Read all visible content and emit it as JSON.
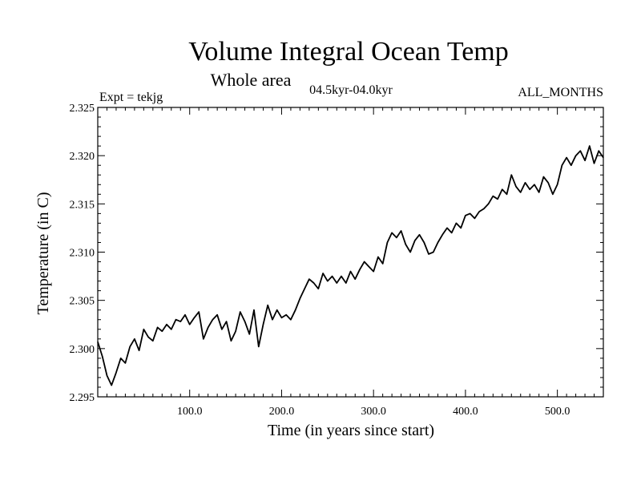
{
  "chart_data": {
    "type": "line",
    "title": "Volume Integral Ocean Temp",
    "subtitle": "Whole area",
    "period": "04.5kyr-04.0kyr",
    "expt": "Expt = tekjg",
    "months": "ALL_MONTHS",
    "xlabel": "Time (in years since start)",
    "ylabel": "Temperature (in C)",
    "xlim": [
      0,
      550
    ],
    "ylim": [
      2.295,
      2.325
    ],
    "x_ticks": [
      100.0,
      200.0,
      300.0,
      400.0,
      500.0
    ],
    "x_tick_labels": [
      "100.0",
      "200.0",
      "300.0",
      "400.0",
      "500.0"
    ],
    "y_ticks": [
      2.295,
      2.3,
      2.305,
      2.31,
      2.315,
      2.32,
      2.325
    ],
    "y_tick_labels": [
      "2.295",
      "2.300",
      "2.305",
      "2.310",
      "2.315",
      "2.320",
      "2.325"
    ],
    "series": [
      {
        "name": "Volume integral ocean temperature",
        "color": "#000000",
        "x": [
          0,
          5,
          10,
          15,
          20,
          25,
          30,
          35,
          40,
          45,
          50,
          55,
          60,
          65,
          70,
          75,
          80,
          85,
          90,
          95,
          100,
          105,
          110,
          115,
          120,
          125,
          130,
          135,
          140,
          145,
          150,
          155,
          160,
          165,
          170,
          175,
          180,
          185,
          190,
          195,
          200,
          205,
          210,
          215,
          220,
          225,
          230,
          235,
          240,
          245,
          250,
          255,
          260,
          265,
          270,
          275,
          280,
          285,
          290,
          295,
          300,
          305,
          310,
          315,
          320,
          325,
          330,
          335,
          340,
          345,
          350,
          355,
          360,
          365,
          370,
          375,
          380,
          385,
          390,
          395,
          400,
          405,
          410,
          415,
          420,
          425,
          430,
          435,
          440,
          445,
          450,
          455,
          460,
          465,
          470,
          475,
          480,
          485,
          490,
          495,
          500,
          505,
          510,
          515,
          520,
          525,
          530,
          535,
          540,
          545,
          550
        ],
        "y": [
          2.3007,
          2.2992,
          2.2972,
          2.2962,
          2.2975,
          2.299,
          2.2985,
          2.3002,
          2.301,
          2.2998,
          2.302,
          2.3012,
          2.3008,
          2.3022,
          2.3018,
          2.3025,
          2.302,
          2.303,
          2.3028,
          2.3035,
          2.3025,
          2.3032,
          2.3038,
          2.301,
          2.3022,
          2.303,
          2.3035,
          2.302,
          2.3028,
          2.3008,
          2.3018,
          2.3038,
          2.3028,
          2.3015,
          2.304,
          2.3002,
          2.3025,
          2.3045,
          2.303,
          2.304,
          2.3032,
          2.3035,
          2.303,
          2.304,
          2.3052,
          2.3062,
          2.3072,
          2.3068,
          2.3062,
          2.3078,
          2.307,
          2.3075,
          2.3068,
          2.3075,
          2.3068,
          2.308,
          2.3072,
          2.3082,
          2.309,
          2.3085,
          2.308,
          2.3095,
          2.3088,
          2.311,
          2.312,
          2.3115,
          2.3122,
          2.3108,
          2.31,
          2.3112,
          2.3118,
          2.311,
          2.3098,
          2.31,
          2.311,
          2.3118,
          2.3125,
          2.312,
          2.313,
          2.3125,
          2.3138,
          2.314,
          2.3135,
          2.3142,
          2.3145,
          2.315,
          2.3158,
          2.3155,
          2.3165,
          2.316,
          2.318,
          2.3168,
          2.3162,
          2.3172,
          2.3165,
          2.317,
          2.3162,
          2.3178,
          2.3172,
          2.316,
          2.317,
          2.319,
          2.3198,
          2.319,
          2.32,
          2.3205,
          2.3195,
          2.321,
          2.3192,
          2.3205,
          2.3198
        ]
      }
    ]
  }
}
